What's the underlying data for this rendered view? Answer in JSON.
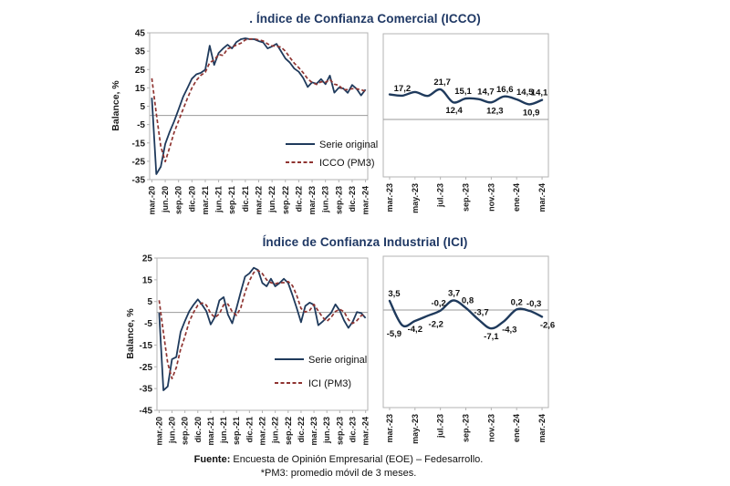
{
  "colors": {
    "serie_original": "#1f3a5c",
    "pm3_dashed": "#8f3431",
    "title_navy": "#1f3864",
    "plot_border": "#b3b3b3",
    "zero_line": "#9a9a9a",
    "tick_text": "#1a1a1a",
    "label_text": "#111111"
  },
  "footer": {
    "source_label": "Fuente:",
    "source_text": " Encuesta de Opinión Empresarial (EOE) – Fedesarrollo.",
    "note": "*PM3: promedio móvil de 3 meses."
  },
  "chart_data": [
    {
      "id": "icco-left",
      "type": "line",
      "title": ". Índice de Confianza Comercial (ICCO)",
      "ylabel": "Balance, %",
      "x_start": "mar.-20",
      "x_freq": "monthly",
      "x_tick_labels": [
        "mar.-20",
        "jun.-20",
        "sep.-20",
        "dic.-20",
        "mar.-21",
        "jun.-21",
        "sep.-21",
        "dic.-21",
        "mar.-22",
        "jun.-22",
        "sep.-22",
        "dic.-22",
        "mar.-23",
        "jun.-23",
        "sep.-23",
        "dic.-23",
        "mar.-24"
      ],
      "y_ticks": [
        45,
        35,
        25,
        15,
        5,
        -5,
        -15,
        -25,
        -35
      ],
      "ylim": [
        -35,
        45
      ],
      "zero_line": true,
      "grid": false,
      "legend_position": "inside lower right",
      "legend": [
        {
          "label": "Serie original",
          "style": "solid"
        },
        {
          "label": "ICCO (PM3)",
          "style": "dashed"
        }
      ],
      "series": [
        {
          "name": "Serie original",
          "values": [
            9.6,
            -32,
            -28,
            -15.5,
            -9,
            -3.3,
            3.3,
            10,
            15,
            20,
            22.4,
            23.2,
            25,
            38,
            27.5,
            34,
            36.5,
            38.5,
            36.5,
            40,
            41.5,
            42,
            41.5,
            41.5,
            40.5,
            39.8,
            36.5,
            37.6,
            39,
            35,
            31,
            28.8,
            25.5,
            23.8,
            20.4,
            15.5,
            18,
            17.2,
            19.8,
            17,
            21.7,
            12.4,
            15.1,
            14.7,
            12.3,
            16.6,
            14.5,
            10.9,
            14.1
          ]
        },
        {
          "name": "ICCO (PM3)",
          "derived": "3-month moving average of Serie original",
          "pre_window": [
            26,
            25
          ]
        }
      ]
    },
    {
      "id": "icco-right",
      "type": "line",
      "smooth": true,
      "x_start": "mar.-23",
      "x_freq": "monthly",
      "x_tick_labels": [
        "mar.-23",
        "may.-23",
        "jul.-23",
        "sep.-23",
        "nov.-23",
        "ene.-24",
        "mar.-24"
      ],
      "zero_line": true,
      "values": [
        18.0,
        17.2,
        19.8,
        17.0,
        21.7,
        12.4,
        15.1,
        14.7,
        12.3,
        16.6,
        14.5,
        10.9,
        14.1
      ],
      "labels": [
        null,
        {
          "text": "17,2",
          "value": 17.2,
          "pos": "above",
          "dx": 0
        },
        null,
        null,
        {
          "text": "21,7",
          "value": 21.7,
          "pos": "above",
          "dx": 2
        },
        {
          "text": "12,4",
          "value": 12.4,
          "pos": "below",
          "dx": 1
        },
        {
          "text": "15,1",
          "value": 15.1,
          "pos": "above",
          "dx": -3
        },
        {
          "text": "14,7",
          "value": 14.7,
          "pos": "above",
          "dx": 8
        },
        {
          "text": "12,3",
          "value": 12.3,
          "pos": "below",
          "dx": 4
        },
        {
          "text": "16,6",
          "value": 16.6,
          "pos": "above",
          "dx": 1
        },
        {
          "text": "14,5",
          "value": 14.5,
          "pos": "above",
          "dx": 9
        },
        {
          "text": "10,9",
          "value": 10.9,
          "pos": "below",
          "dx": 2
        },
        {
          "text": "14,1",
          "value": 14.1,
          "pos": "above",
          "dx": -3
        }
      ]
    },
    {
      "id": "ici-left",
      "type": "line",
      "title": "Índice de Confianza Industrial (ICI)",
      "ylabel": "Balance, %",
      "x_start": "mar.-20",
      "x_freq": "monthly",
      "x_tick_labels": [
        "mar.-20",
        "jun.-20",
        "sep.-20",
        "dic.-20",
        "mar.-21",
        "jun.-21",
        "sep.-21",
        "dic.-21",
        "mar.-22",
        "jun.-22",
        "sep.-22",
        "dic.-22",
        "mar.-23",
        "jun.-23",
        "sep.-23",
        "dic.-23",
        "mar.-24"
      ],
      "y_ticks": [
        25,
        15,
        5,
        -5,
        -15,
        -25,
        -35,
        -45
      ],
      "ylim": [
        -45,
        25
      ],
      "zero_line": true,
      "grid": false,
      "legend_position": "inside lower right",
      "legend": [
        {
          "label": "Serie original",
          "style": "solid"
        },
        {
          "label": "ICI (PM3)",
          "style": "dashed"
        }
      ],
      "series": [
        {
          "name": "Serie original",
          "values": [
            -0.2,
            -35.8,
            -34,
            -21.5,
            -20.5,
            -9,
            -4,
            0.5,
            3.5,
            6,
            3.5,
            0.5,
            -5.5,
            -2,
            5.5,
            7,
            -1,
            -5,
            2,
            9.5,
            16.5,
            18,
            20.5,
            19.5,
            13.5,
            12,
            15.5,
            12,
            13.5,
            15.5,
            13.5,
            8,
            2,
            -4.5,
            3,
            4.5,
            3.5,
            -5.9,
            -4.2,
            -2.2,
            -0.2,
            3.7,
            0.8,
            -3.7,
            -7.1,
            -4.3,
            0.2,
            -0.3,
            -2.6
          ]
        },
        {
          "name": "ICI (PM3)",
          "derived": "3-month moving average of Serie original",
          "pre_window": [
            9,
            8
          ]
        }
      ]
    },
    {
      "id": "ici-right",
      "type": "line",
      "smooth": true,
      "x_start": "mar.-23",
      "x_freq": "monthly",
      "x_tick_labels": [
        "mar.-23",
        "may.-23",
        "jul.-23",
        "sep.-23",
        "nov.-23",
        "ene.-24",
        "mar.-24"
      ],
      "zero_line": true,
      "values": [
        3.5,
        -5.9,
        -4.2,
        -2.2,
        -0.2,
        3.7,
        0.8,
        -3.7,
        -7.1,
        -4.3,
        0.2,
        -0.3,
        -2.6
      ],
      "labels": [
        {
          "text": "3,5",
          "value": 3.5,
          "pos": "above",
          "dx": 5
        },
        {
          "text": "-5,9",
          "value": -5.9,
          "pos": "below",
          "dx": -9
        },
        {
          "text": "-4,2",
          "value": -4.2,
          "pos": "below",
          "dx": 0
        },
        {
          "text": "-2,2",
          "value": -2.2,
          "pos": "below",
          "dx": 9
        },
        {
          "text": "-0,2",
          "value": -0.2,
          "pos": "above",
          "dx": -2
        },
        {
          "text": "3,7",
          "value": 3.7,
          "pos": "above",
          "dx": 1
        },
        {
          "text": "0,8",
          "value": 0.8,
          "pos": "above",
          "dx": 2
        },
        {
          "text": "-3,7",
          "value": -3.7,
          "pos": "above",
          "dx": 3
        },
        {
          "text": "-7,1",
          "value": -7.1,
          "pos": "below",
          "dx": 0
        },
        {
          "text": "-4,3",
          "value": -4.3,
          "pos": "below",
          "dx": 6
        },
        {
          "text": "0,2",
          "value": 0.2,
          "pos": "above",
          "dx": 0
        },
        {
          "text": "-0,3",
          "value": -0.3,
          "pos": "above",
          "dx": 5
        },
        {
          "text": "-2,6",
          "value": -2.6,
          "pos": "below",
          "dx": 6
        }
      ]
    }
  ]
}
